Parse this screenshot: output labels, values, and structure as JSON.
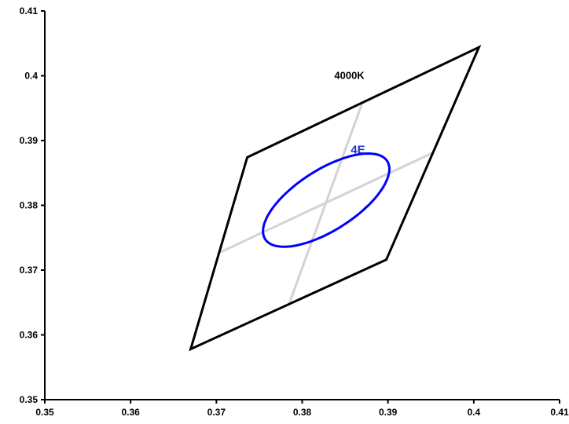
{
  "chart_data": {
    "type": "scatter",
    "title": "",
    "xlabel": "",
    "ylabel": "",
    "xlim": [
      0.35,
      0.41
    ],
    "ylim": [
      0.35,
      0.41
    ],
    "x_ticks": [
      "0.35",
      "0.36",
      "0.37",
      "0.38",
      "0.39",
      "0.4",
      "0.41"
    ],
    "y_ticks": [
      "0.35",
      "0.36",
      "0.37",
      "0.38",
      "0.39",
      "0.4",
      "0.41"
    ],
    "grid": false,
    "legend": "none",
    "series": [
      {
        "kind": "polygon",
        "color": "#000000",
        "points": [
          {
            "x": 0.3736,
            "y": 0.3874
          },
          {
            "x": 0.4006,
            "y": 0.4044
          },
          {
            "x": 0.3898,
            "y": 0.3716
          },
          {
            "x": 0.367,
            "y": 0.3578
          }
        ]
      },
      {
        "kind": "line",
        "color": "#d3d3d3",
        "points": [
          {
            "x": 0.3702,
            "y": 0.3726
          },
          {
            "x": 0.3952,
            "y": 0.3881
          }
        ]
      },
      {
        "kind": "line",
        "color": "#d3d3d3",
        "points": [
          {
            "x": 0.387,
            "y": 0.3958
          },
          {
            "x": 0.3784,
            "y": 0.3645
          }
        ]
      },
      {
        "kind": "ellipse",
        "color": "#0000ff",
        "center": {
          "x": 0.3828,
          "y": 0.3808
        },
        "semi_axes": [
          0.0094,
          0.0042
        ],
        "rotation_deg": 44
      }
    ],
    "annotations": [
      {
        "text": "4000K",
        "x": 0.3855,
        "y": 0.4,
        "color": "#000000"
      },
      {
        "text": "4E",
        "x": 0.3865,
        "y": 0.3885,
        "color": "#1f2fd0"
      }
    ]
  }
}
